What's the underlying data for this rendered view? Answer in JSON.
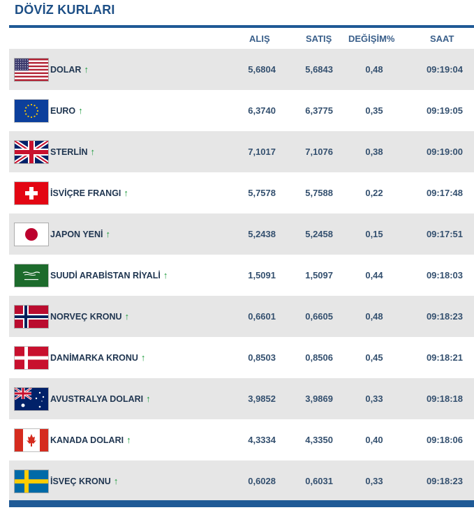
{
  "title": "DÖVİZ KURLARI",
  "columns": {
    "alis": "ALIŞ",
    "satis": "SATIŞ",
    "degisim": "DEĞİŞİM%",
    "saat": "SAAT"
  },
  "colors": {
    "accent": "#1f5a96",
    "up_arrow": "#1a9a3a",
    "stripe": "#e6e6e6"
  },
  "rows": [
    {
      "flag_icon": "us-flag-icon",
      "name": "DOLAR",
      "trend": "↑",
      "alis": "5,6804",
      "satis": "5,6843",
      "degisim": "0,48",
      "saat": "09:19:04"
    },
    {
      "flag_icon": "eu-flag-icon",
      "name": "EURO",
      "trend": "↑",
      "alis": "6,3740",
      "satis": "6,3775",
      "degisim": "0,35",
      "saat": "09:19:05"
    },
    {
      "flag_icon": "uk-flag-icon",
      "name": "STERLİN",
      "trend": "↑",
      "alis": "7,1017",
      "satis": "7,1076",
      "degisim": "0,38",
      "saat": "09:19:00"
    },
    {
      "flag_icon": "swiss-flag-icon",
      "name": "İSVİÇRE FRANGI",
      "trend": "↑",
      "alis": "5,7578",
      "satis": "5,7588",
      "degisim": "0,22",
      "saat": "09:17:48"
    },
    {
      "flag_icon": "japan-flag-icon",
      "name": "JAPON YENİ",
      "trend": "↑",
      "alis": "5,2438",
      "satis": "5,2458",
      "degisim": "0,15",
      "saat": "09:17:51"
    },
    {
      "flag_icon": "saudi-flag-icon",
      "name": "SUUDİ ARABİSTAN RİYALİ",
      "trend": "↑",
      "alis": "1,5091",
      "satis": "1,5097",
      "degisim": "0,44",
      "saat": "09:18:03"
    },
    {
      "flag_icon": "norway-flag-icon",
      "name": "NORVEÇ KRONU",
      "trend": "↑",
      "alis": "0,6601",
      "satis": "0,6605",
      "degisim": "0,48",
      "saat": "09:18:23"
    },
    {
      "flag_icon": "denmark-flag-icon",
      "name": "DANİMARKA KRONU",
      "trend": "↑",
      "alis": "0,8503",
      "satis": "0,8506",
      "degisim": "0,45",
      "saat": "09:18:21"
    },
    {
      "flag_icon": "australia-flag-icon",
      "name": "AVUSTRALYA DOLARI",
      "trend": "↑",
      "alis": "3,9852",
      "satis": "3,9869",
      "degisim": "0,33",
      "saat": "09:18:18"
    },
    {
      "flag_icon": "canada-flag-icon",
      "name": "KANADA DOLARI",
      "trend": "↑",
      "alis": "4,3334",
      "satis": "4,3350",
      "degisim": "0,40",
      "saat": "09:18:06"
    },
    {
      "flag_icon": "sweden-flag-icon",
      "name": "İSVEÇ KRONU",
      "trend": "↑",
      "alis": "0,6028",
      "satis": "0,6031",
      "degisim": "0,33",
      "saat": "09:18:23"
    }
  ]
}
